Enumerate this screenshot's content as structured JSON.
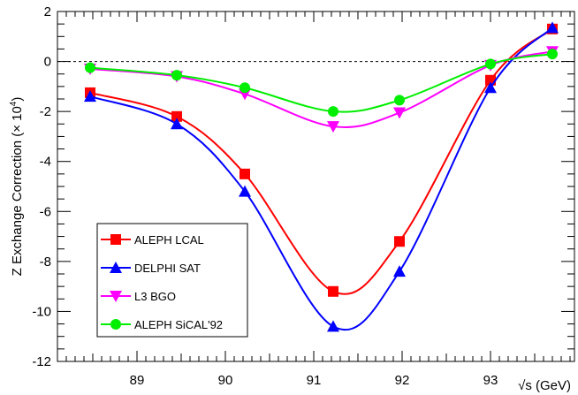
{
  "chart_data": {
    "type": "line",
    "xlabel": "√s (GeV)",
    "ylabel": "Z Exchange Correction (× 10",
    "ylabel_exp": "4",
    "ylabel_close": ")",
    "xlim": [
      88.1,
      93.95
    ],
    "ylim": [
      -12,
      2
    ],
    "xticks": [
      "89",
      "90",
      "91",
      "92",
      "93"
    ],
    "yticks": [
      "-12",
      "-10",
      "-8",
      "-6",
      "-4",
      "-2",
      "0",
      "2"
    ],
    "reference_line": 0,
    "legend_position": "bottom-left",
    "series": [
      {
        "name": "ALEPH LCAL",
        "color": "#ff0000",
        "marker": "square",
        "x": [
          88.47,
          89.45,
          90.22,
          91.22,
          91.97,
          93.0,
          93.7
        ],
        "y": [
          -1.25,
          -2.2,
          -4.5,
          -9.2,
          -7.2,
          -0.75,
          1.3
        ]
      },
      {
        "name": "DELPHI SAT",
        "color": "#0000ff",
        "marker": "triangle-up",
        "x": [
          88.47,
          89.45,
          90.22,
          91.22,
          91.97,
          93.0,
          93.7
        ],
        "y": [
          -1.4,
          -2.5,
          -5.2,
          -10.6,
          -8.4,
          -1.05,
          1.35
        ]
      },
      {
        "name": "L3 BGO",
        "color": "#ff00ff",
        "marker": "triangle-down",
        "x": [
          88.47,
          89.45,
          90.22,
          91.22,
          91.97,
          93.0,
          93.7
        ],
        "y": [
          -0.3,
          -0.6,
          -1.3,
          -2.6,
          -2.05,
          -0.15,
          0.4
        ]
      },
      {
        "name": "ALEPH SiCAL'92",
        "color": "#00ee00",
        "marker": "circle",
        "x": [
          88.47,
          89.45,
          90.22,
          91.22,
          91.97,
          93.0,
          93.7
        ],
        "y": [
          -0.25,
          -0.55,
          -1.05,
          -2.0,
          -1.55,
          -0.1,
          0.3
        ]
      }
    ]
  }
}
